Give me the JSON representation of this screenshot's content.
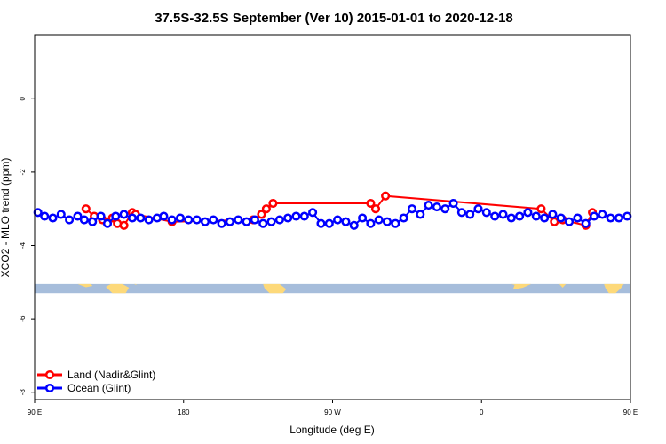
{
  "chart_data": {
    "type": "scatter",
    "title": "37.5S-32.5S September (Ver 10)   2015-01-01 to 2020-12-18",
    "xlabel": "Longitude (deg E)",
    "ylabel": "XCO2 - MLO trend (ppm)",
    "xlim": [
      90,
      450
    ],
    "ylim": [
      -8.2,
      1.75
    ],
    "x_ticks": [
      {
        "value": 90,
        "label": "90 E"
      },
      {
        "value": 180,
        "label": "180"
      },
      {
        "value": 270,
        "label": "90 W"
      },
      {
        "value": 360,
        "label": "0"
      },
      {
        "value": 450,
        "label": "90 E"
      },
      {
        "value": 540,
        "label": "180"
      }
    ],
    "y_ticks": [
      {
        "value": 0,
        "label": "0"
      },
      {
        "value": -2,
        "label": "-2"
      },
      {
        "value": -4,
        "label": "-4"
      },
      {
        "value": -6,
        "label": "-6"
      },
      {
        "value": -8,
        "label": "-8"
      }
    ],
    "legend_position": "bottom-left",
    "grid": false,
    "map_strip": {
      "y_range": [
        -5.05,
        -5.3
      ],
      "ocean_color": "#a6bddb",
      "land_color": "#fdd97a"
    },
    "series": [
      {
        "name": "Land (Nadir&Glint)",
        "color": "#ff0000",
        "x": [
          121,
          126,
          131,
          137,
          140,
          144,
          149,
          151,
          173,
          222,
          227,
          230,
          234,
          293,
          296,
          302,
          396,
          404,
          409,
          423,
          427
        ],
        "y": [
          -3.0,
          -3.2,
          -3.3,
          -3.25,
          -3.4,
          -3.45,
          -3.1,
          -3.15,
          -3.35,
          -3.3,
          -3.15,
          -3.0,
          -2.85,
          -2.85,
          -3.0,
          -2.65,
          -3.0,
          -3.35,
          -3.3,
          -3.45,
          -3.1
        ]
      },
      {
        "name": "Ocean (Glint)",
        "color": "#0000ff",
        "x": [
          92,
          96,
          101,
          106,
          111,
          116,
          120,
          125,
          130,
          134,
          139,
          144,
          149,
          154,
          159,
          164,
          168,
          173,
          178,
          183,
          188,
          193,
          198,
          203,
          208,
          213,
          218,
          223,
          228,
          233,
          238,
          243,
          248,
          253,
          258,
          263,
          268,
          273,
          278,
          283,
          288,
          293,
          298,
          303,
          308,
          313,
          318,
          323,
          328,
          333,
          338,
          343,
          348,
          353,
          358,
          363,
          368,
          373,
          378,
          383,
          388,
          393,
          398,
          403,
          408,
          413,
          418,
          423,
          428,
          433,
          438,
          443,
          448
        ],
        "y": [
          -3.1,
          -3.2,
          -3.25,
          -3.15,
          -3.3,
          -3.2,
          -3.3,
          -3.35,
          -3.2,
          -3.4,
          -3.2,
          -3.15,
          -3.25,
          -3.25,
          -3.3,
          -3.25,
          -3.2,
          -3.3,
          -3.25,
          -3.3,
          -3.3,
          -3.35,
          -3.3,
          -3.4,
          -3.35,
          -3.3,
          -3.35,
          -3.3,
          -3.4,
          -3.35,
          -3.3,
          -3.25,
          -3.2,
          -3.2,
          -3.1,
          -3.4,
          -3.4,
          -3.3,
          -3.35,
          -3.45,
          -3.25,
          -3.4,
          -3.3,
          -3.35,
          -3.4,
          -3.25,
          -3.0,
          -3.15,
          -2.9,
          -2.95,
          -3.0,
          -2.85,
          -3.1,
          -3.15,
          -3.0,
          -3.1,
          -3.2,
          -3.15,
          -3.25,
          -3.2,
          -3.1,
          -3.2,
          -3.25,
          -3.15,
          -3.25,
          -3.35,
          -3.25,
          -3.4,
          -3.2,
          -3.15,
          -3.25,
          -3.25,
          -3.2
        ]
      }
    ]
  }
}
